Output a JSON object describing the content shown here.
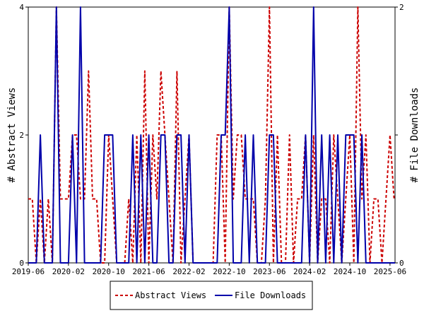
{
  "chart_data": {
    "type": "line",
    "title": "",
    "x_tick_labels": [
      "2019-06",
      "2020-02",
      "2020-10",
      "2021-06",
      "2022-02",
      "2022-10",
      "2023-06",
      "2024-02",
      "2024-10",
      "2025-06"
    ],
    "y_left_label": "# Abstract Views",
    "y_right_label": "# File Downloads",
    "y_left_ticks": [
      "0",
      "2",
      "4"
    ],
    "y_right_ticks": [
      "0",
      "1",
      "2"
    ],
    "ylim_left": [
      0,
      4
    ],
    "ylim_right": [
      0,
      2
    ],
    "x_range_months": [
      0,
      73
    ],
    "legend_position": "bottom-center",
    "series": [
      {
        "name": "Abstract Views",
        "axis": "left",
        "color": "#cc0000",
        "style": "dashed",
        "x": [
          0,
          0.8,
          1.6,
          2.4,
          3.2,
          4,
          4.8,
          5.6,
          6.4,
          7.2,
          8,
          8.8,
          9.6,
          10.4,
          11.2,
          12,
          12.8,
          13.6,
          14.4,
          15.2,
          16,
          16.8,
          17.6,
          18.4,
          19.2,
          20,
          20.8,
          21.6,
          22.4,
          23.2,
          24,
          24.8,
          25.6,
          26.4,
          27.2,
          28,
          28.8,
          29.6,
          30.4,
          31.2,
          32,
          32.8,
          33.6,
          34.4,
          35.2,
          36,
          36.8,
          37.6,
          38.4,
          39.2,
          40,
          40.8,
          41.6,
          42.4,
          43.2,
          44,
          44.8,
          45.6,
          46.4,
          47.2,
          48,
          48.8,
          49.6,
          50.4,
          51.2,
          52,
          52.8,
          53.6,
          54.4,
          55.2,
          56,
          56.8,
          57.6,
          58.4,
          59.2,
          60,
          60.8,
          61.6,
          62.4,
          63.2,
          64,
          64.8,
          65.6,
          66.4,
          67.2,
          68,
          68.8,
          69.6,
          70.4,
          71.2,
          72,
          72.8,
          73
        ],
        "values": [
          1,
          1,
          0,
          1,
          0,
          1,
          0,
          4,
          1,
          1,
          1,
          2,
          2,
          1,
          1,
          3,
          1,
          1,
          0,
          0,
          2,
          1,
          0,
          0,
          0,
          1,
          0,
          2,
          0,
          3,
          0,
          2,
          1,
          3,
          2,
          1,
          0,
          3,
          0,
          1,
          2,
          0,
          0,
          0,
          0,
          0,
          0,
          2,
          2,
          0,
          4,
          1,
          2,
          2,
          1,
          1,
          1,
          0,
          0,
          1,
          4,
          0,
          2,
          0,
          0,
          2,
          0,
          1,
          1,
          2,
          0,
          2,
          0,
          1,
          1,
          0,
          2,
          1,
          0,
          1,
          2,
          0,
          4,
          1,
          2,
          0,
          1,
          1,
          0,
          1,
          2,
          1,
          1
        ],
        "values_note": ""
      },
      {
        "name": "File Downloads",
        "axis": "right",
        "color": "#0000aa",
        "style": "solid",
        "x": [
          0,
          0.8,
          1.6,
          2.4,
          3.2,
          4,
          4.8,
          5.6,
          6.4,
          7.2,
          8,
          8.8,
          9.6,
          10.4,
          11.2,
          12,
          12.8,
          13.6,
          14.4,
          15.2,
          16,
          16.8,
          17.6,
          18.4,
          19.2,
          20,
          20.8,
          21.6,
          22.4,
          23.2,
          24,
          24.8,
          25.6,
          26.4,
          27.2,
          28,
          28.8,
          29.6,
          30.4,
          31.2,
          32,
          32.8,
          33.6,
          34.4,
          35.2,
          36,
          36.8,
          37.6,
          38.4,
          39.2,
          40,
          40.8,
          41.6,
          42.4,
          43.2,
          44,
          44.8,
          45.6,
          46.4,
          47.2,
          48,
          48.8,
          49.6,
          50.4,
          51.2,
          52,
          52.8,
          53.6,
          54.4,
          55.2,
          56,
          56.8,
          57.6,
          58.4,
          59.2,
          60,
          60.8,
          61.6,
          62.4,
          63.2,
          64,
          64.8,
          65.6,
          66.4,
          67.2,
          68,
          68.8,
          69.6,
          70.4,
          71.2,
          72,
          72.8,
          73
        ],
        "values": [
          0,
          0,
          0,
          1,
          0,
          0,
          0,
          2,
          0,
          0,
          0,
          1,
          0,
          2,
          0,
          0,
          0,
          0,
          0,
          1,
          1,
          1,
          0,
          0,
          0,
          0,
          1,
          0,
          1,
          0,
          1,
          0,
          0,
          1,
          1,
          0,
          0,
          1,
          1,
          0,
          1,
          0,
          0,
          0,
          0,
          0,
          0,
          0,
          1,
          1,
          2,
          0,
          0,
          0,
          1,
          0,
          1,
          0,
          0,
          0,
          1,
          1,
          0,
          0,
          0,
          0,
          0,
          0,
          0,
          1,
          0,
          2,
          0,
          1,
          0,
          1,
          0,
          1,
          0,
          1,
          1,
          1,
          0,
          1,
          0,
          0,
          0,
          0,
          0,
          0,
          0,
          0,
          0
        ]
      }
    ]
  }
}
